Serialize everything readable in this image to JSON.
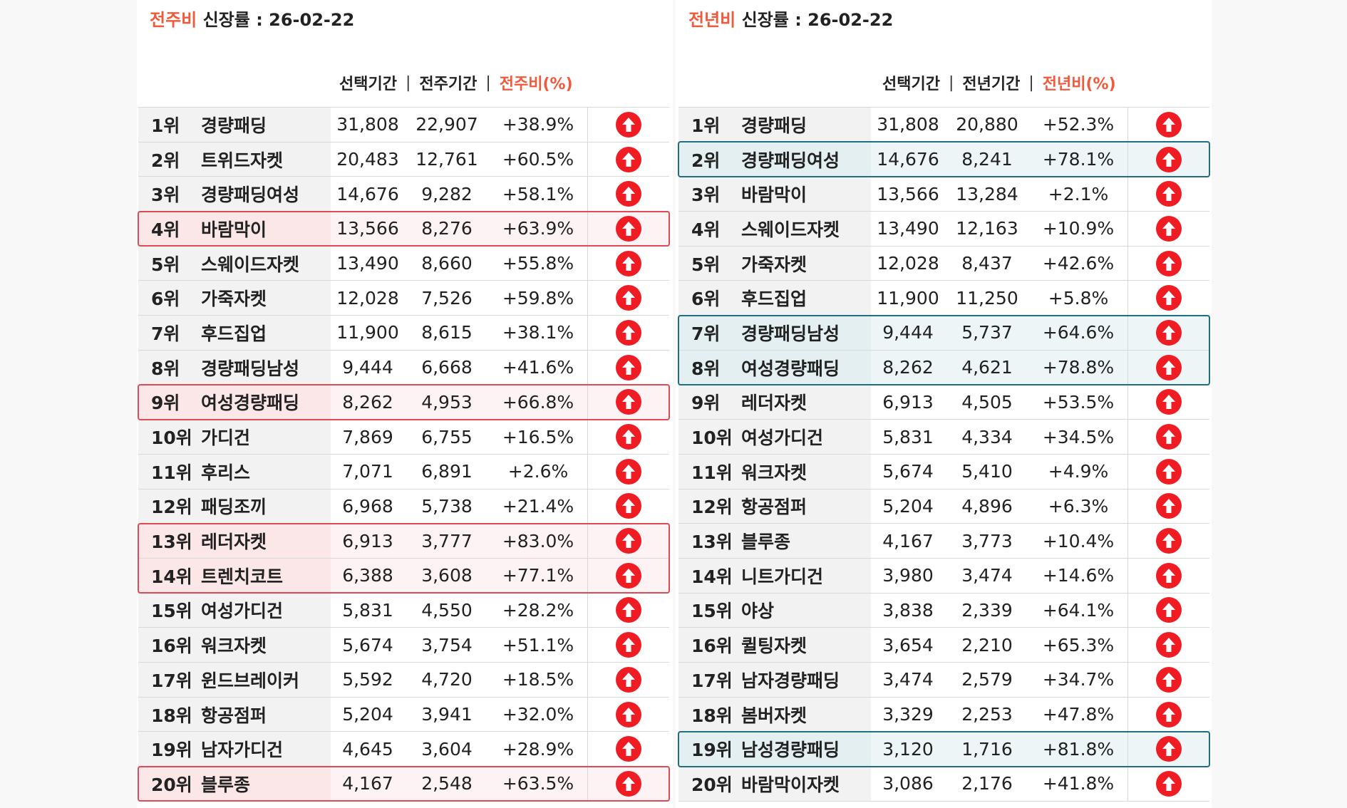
{
  "left": {
    "title_accent": "전주비",
    "title_rest": " 신장률 : 26-02-22",
    "headers": {
      "selected": "선택기간",
      "separator": "|",
      "prev": "전주기간",
      "pct": "전주비(%)"
    },
    "rows": [
      {
        "rank": "1위",
        "name": "경량패딩",
        "sel": "31,808",
        "prev": "22,907",
        "pct": "+38.9%",
        "hl": ""
      },
      {
        "rank": "2위",
        "name": "트위드자켓",
        "sel": "20,483",
        "prev": "12,761",
        "pct": "+60.5%",
        "hl": ""
      },
      {
        "rank": "3위",
        "name": "경량패딩여성",
        "sel": "14,676",
        "prev": "9,282",
        "pct": "+58.1%",
        "hl": ""
      },
      {
        "rank": "4위",
        "name": "바람막이",
        "sel": "13,566",
        "prev": "8,276",
        "pct": "+63.9%",
        "hl": "red"
      },
      {
        "rank": "5위",
        "name": "스웨이드자켓",
        "sel": "13,490",
        "prev": "8,660",
        "pct": "+55.8%",
        "hl": ""
      },
      {
        "rank": "6위",
        "name": "가죽자켓",
        "sel": "12,028",
        "prev": "7,526",
        "pct": "+59.8%",
        "hl": ""
      },
      {
        "rank": "7위",
        "name": "후드집업",
        "sel": "11,900",
        "prev": "8,615",
        "pct": "+38.1%",
        "hl": ""
      },
      {
        "rank": "8위",
        "name": "경량패딩남성",
        "sel": "9,444",
        "prev": "6,668",
        "pct": "+41.6%",
        "hl": ""
      },
      {
        "rank": "9위",
        "name": "여성경량패딩",
        "sel": "8,262",
        "prev": "4,953",
        "pct": "+66.8%",
        "hl": "red"
      },
      {
        "rank": "10위",
        "name": "가디건",
        "sel": "7,869",
        "prev": "6,755",
        "pct": "+16.5%",
        "hl": ""
      },
      {
        "rank": "11위",
        "name": "후리스",
        "sel": "7,071",
        "prev": "6,891",
        "pct": "+2.6%",
        "hl": ""
      },
      {
        "rank": "12위",
        "name": "패딩조끼",
        "sel": "6,968",
        "prev": "5,738",
        "pct": "+21.4%",
        "hl": ""
      },
      {
        "rank": "13위",
        "name": "레더자켓",
        "sel": "6,913",
        "prev": "3,777",
        "pct": "+83.0%",
        "hl": "red"
      },
      {
        "rank": "14위",
        "name": "트렌치코트",
        "sel": "6,388",
        "prev": "3,608",
        "pct": "+77.1%",
        "hl": "red"
      },
      {
        "rank": "15위",
        "name": "여성가디건",
        "sel": "5,831",
        "prev": "4,550",
        "pct": "+28.2%",
        "hl": ""
      },
      {
        "rank": "16위",
        "name": "워크자켓",
        "sel": "5,674",
        "prev": "3,754",
        "pct": "+51.1%",
        "hl": ""
      },
      {
        "rank": "17위",
        "name": "윈드브레이커",
        "sel": "5,592",
        "prev": "4,720",
        "pct": "+18.5%",
        "hl": ""
      },
      {
        "rank": "18위",
        "name": "항공점퍼",
        "sel": "5,204",
        "prev": "3,941",
        "pct": "+32.0%",
        "hl": ""
      },
      {
        "rank": "19위",
        "name": "남자가디건",
        "sel": "4,645",
        "prev": "3,604",
        "pct": "+28.9%",
        "hl": ""
      },
      {
        "rank": "20위",
        "name": "블루종",
        "sel": "4,167",
        "prev": "2,548",
        "pct": "+63.5%",
        "hl": "red"
      }
    ]
  },
  "right": {
    "title_accent": "전년비",
    "title_rest": " 신장률 : 26-02-22",
    "headers": {
      "selected": "선택기간",
      "separator": "|",
      "prev": "전년기간",
      "pct": "전년비(%)"
    },
    "rows": [
      {
        "rank": "1위",
        "name": "경량패딩",
        "sel": "31,808",
        "prev": "20,880",
        "pct": "+52.3%",
        "hl": ""
      },
      {
        "rank": "2위",
        "name": "경량패딩여성",
        "sel": "14,676",
        "prev": "8,241",
        "pct": "+78.1%",
        "hl": "teal"
      },
      {
        "rank": "3위",
        "name": "바람막이",
        "sel": "13,566",
        "prev": "13,284",
        "pct": "+2.1%",
        "hl": ""
      },
      {
        "rank": "4위",
        "name": "스웨이드자켓",
        "sel": "13,490",
        "prev": "12,163",
        "pct": "+10.9%",
        "hl": ""
      },
      {
        "rank": "5위",
        "name": "가죽자켓",
        "sel": "12,028",
        "prev": "8,437",
        "pct": "+42.6%",
        "hl": ""
      },
      {
        "rank": "6위",
        "name": "후드집업",
        "sel": "11,900",
        "prev": "11,250",
        "pct": "+5.8%",
        "hl": ""
      },
      {
        "rank": "7위",
        "name": "경량패딩남성",
        "sel": "9,444",
        "prev": "5,737",
        "pct": "+64.6%",
        "hl": "teal"
      },
      {
        "rank": "8위",
        "name": "여성경량패딩",
        "sel": "8,262",
        "prev": "4,621",
        "pct": "+78.8%",
        "hl": "teal"
      },
      {
        "rank": "9위",
        "name": "레더자켓",
        "sel": "6,913",
        "prev": "4,505",
        "pct": "+53.5%",
        "hl": ""
      },
      {
        "rank": "10위",
        "name": "여성가디건",
        "sel": "5,831",
        "prev": "4,334",
        "pct": "+34.5%",
        "hl": ""
      },
      {
        "rank": "11위",
        "name": "워크자켓",
        "sel": "5,674",
        "prev": "5,410",
        "pct": "+4.9%",
        "hl": ""
      },
      {
        "rank": "12위",
        "name": "항공점퍼",
        "sel": "5,204",
        "prev": "4,896",
        "pct": "+6.3%",
        "hl": ""
      },
      {
        "rank": "13위",
        "name": "블루종",
        "sel": "4,167",
        "prev": "3,773",
        "pct": "+10.4%",
        "hl": ""
      },
      {
        "rank": "14위",
        "name": "니트가디건",
        "sel": "3,980",
        "prev": "3,474",
        "pct": "+14.6%",
        "hl": ""
      },
      {
        "rank": "15위",
        "name": "야상",
        "sel": "3,838",
        "prev": "2,339",
        "pct": "+64.1%",
        "hl": ""
      },
      {
        "rank": "16위",
        "name": "퀼팅자켓",
        "sel": "3,654",
        "prev": "2,210",
        "pct": "+65.3%",
        "hl": ""
      },
      {
        "rank": "17위",
        "name": "남자경량패딩",
        "sel": "3,474",
        "prev": "2,579",
        "pct": "+34.7%",
        "hl": ""
      },
      {
        "rank": "18위",
        "name": "봄버자켓",
        "sel": "3,329",
        "prev": "2,253",
        "pct": "+47.8%",
        "hl": ""
      },
      {
        "rank": "19위",
        "name": "남성경량패딩",
        "sel": "3,120",
        "prev": "1,716",
        "pct": "+81.8%",
        "hl": "teal"
      },
      {
        "rank": "20위",
        "name": "바람막이자켓",
        "sel": "3,086",
        "prev": "2,176",
        "pct": "+41.8%",
        "hl": ""
      }
    ]
  },
  "icon": {
    "name": "arrow-up-circle-icon",
    "color": "#ef1c24"
  },
  "colors": {
    "accent": "#f05a3c",
    "highlight_red": "#e04a55",
    "highlight_teal": "#1f6f82"
  }
}
